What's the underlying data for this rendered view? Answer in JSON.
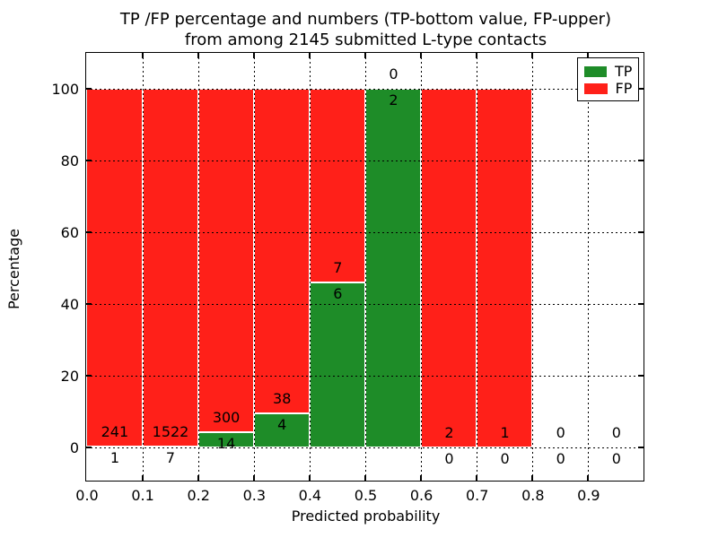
{
  "chart_data": {
    "type": "bar",
    "stacked": true,
    "title": "TP /FP percentage and numbers (TP-bottom value, FP-upper) from among 2145 submitted L-type contacts",
    "title_line1": "TP /FP percentage and numbers (TP-bottom value, FP-upper)",
    "title_line2": "from among 2145 submitted L-type contacts",
    "xlabel": "Predicted probability",
    "ylabel": "Percentage",
    "xlim": [
      0.0,
      1.0
    ],
    "ylim": [
      -10,
      110
    ],
    "x_tick_labels": [
      "0.0",
      "0.1",
      "0.2",
      "0.3",
      "0.4",
      "0.5",
      "0.6",
      "0.7",
      "0.8",
      "0.9"
    ],
    "y_tick_values": [
      0,
      20,
      40,
      60,
      80,
      100
    ],
    "grid": "dotted",
    "total_contacts": 2145,
    "bin_width": 0.1,
    "bin_starts": [
      0.0,
      0.1,
      0.2,
      0.3,
      0.4,
      0.5,
      0.6,
      0.7,
      0.8,
      0.9
    ],
    "series": [
      {
        "name": "TP",
        "color": "#1e8c28",
        "counts": [
          1,
          7,
          14,
          4,
          6,
          2,
          0,
          0,
          0,
          0
        ],
        "pct": [
          0.41,
          0.46,
          4.46,
          9.52,
          46.15,
          100,
          0,
          0,
          0,
          0
        ]
      },
      {
        "name": "FP",
        "color": "#ff2019",
        "counts": [
          241,
          1522,
          300,
          38,
          7,
          0,
          2,
          1,
          0,
          0
        ],
        "pct": [
          99.59,
          99.54,
          95.54,
          90.48,
          53.85,
          0,
          100,
          100,
          0,
          0
        ]
      }
    ],
    "legend": {
      "position": "upper right",
      "entries": [
        {
          "label": "TP",
          "color": "#1e8c28"
        },
        {
          "label": "FP",
          "color": "#ff2019"
        }
      ]
    }
  }
}
